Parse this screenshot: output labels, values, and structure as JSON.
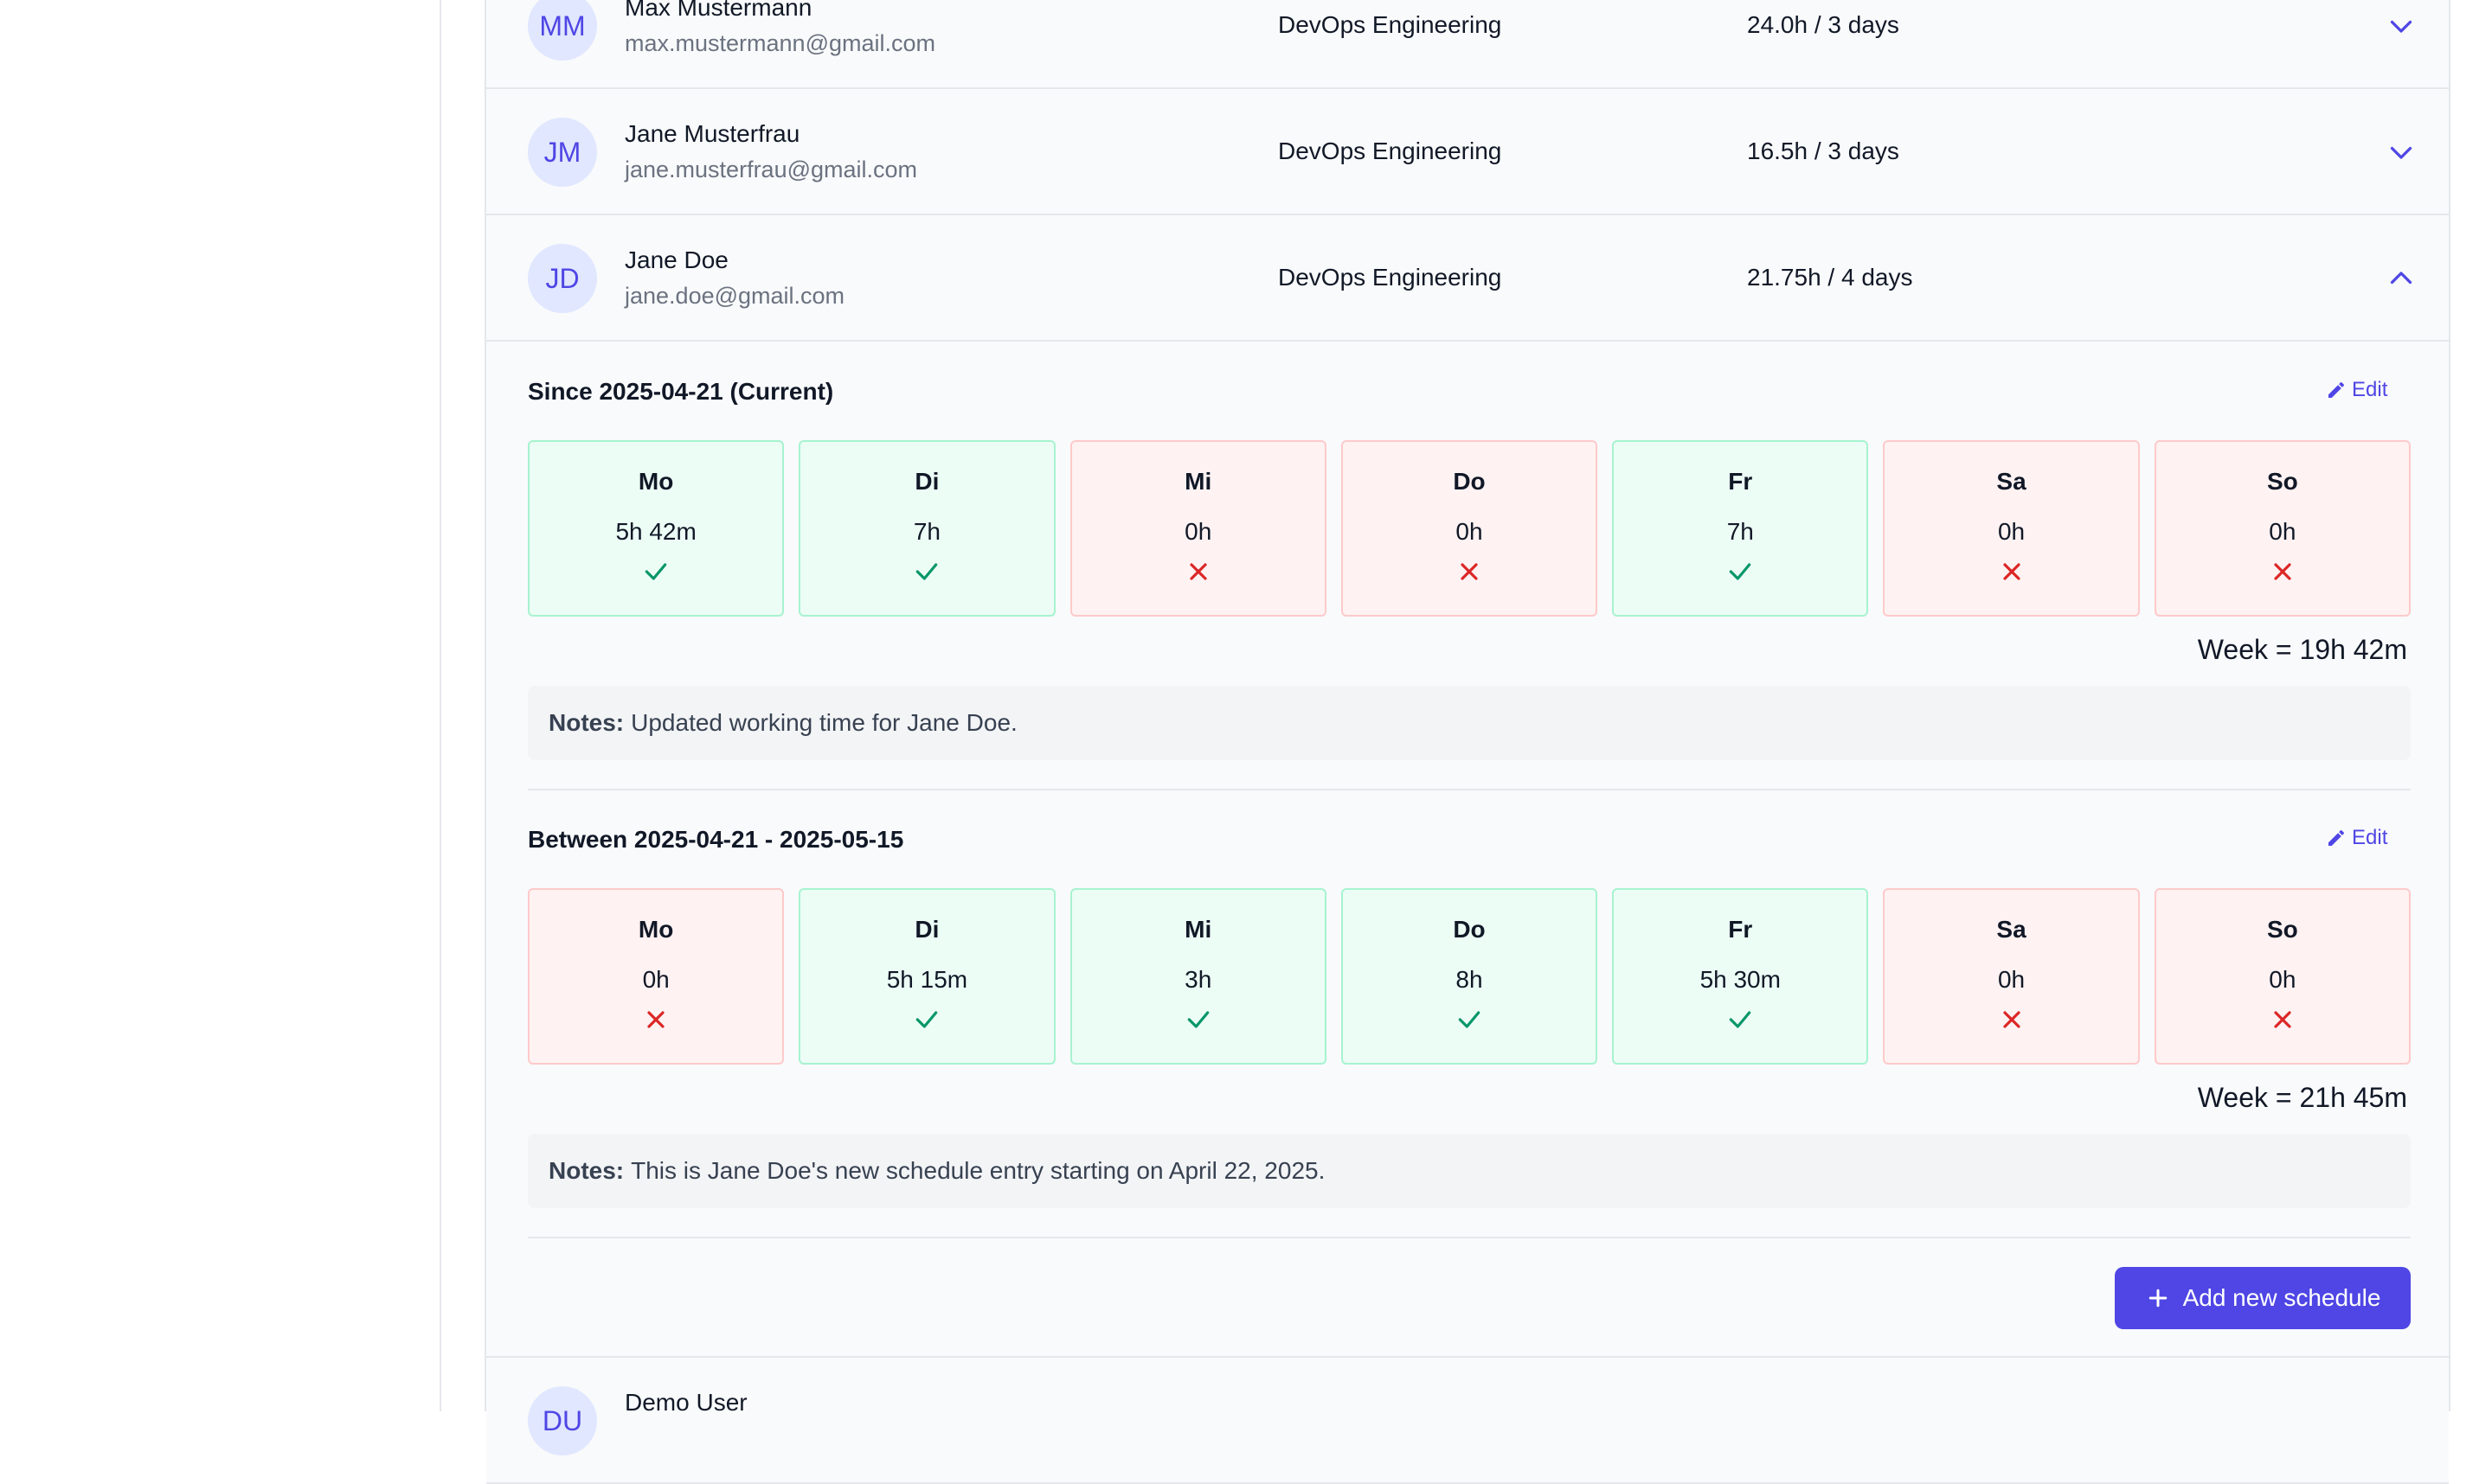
{
  "users": [
    {
      "initials": "MM",
      "name": "Max Mustermann",
      "email": "max.mustermann@gmail.com",
      "department": "DevOps Engineering",
      "hours": "24.0h / 3 days",
      "expanded": false
    },
    {
      "initials": "JM",
      "name": "Jane Musterfrau",
      "email": "jane.musterfrau@gmail.com",
      "department": "DevOps Engineering",
      "hours": "16.5h / 3 days",
      "expanded": false
    },
    {
      "initials": "JD",
      "name": "Jane Doe",
      "email": "jane.doe@gmail.com",
      "department": "DevOps Engineering",
      "hours": "21.75h / 4 days",
      "expanded": true
    },
    {
      "initials": "DU",
      "name": "Demo User"
    }
  ],
  "schedules": [
    {
      "title": "Since 2025-04-21 (Current)",
      "edit_label": "Edit",
      "days": [
        {
          "name": "Mo",
          "hours": "5h 42m",
          "active": true
        },
        {
          "name": "Di",
          "hours": "7h",
          "active": true
        },
        {
          "name": "Mi",
          "hours": "0h",
          "active": false
        },
        {
          "name": "Do",
          "hours": "0h",
          "active": false
        },
        {
          "name": "Fr",
          "hours": "7h",
          "active": true
        },
        {
          "name": "Sa",
          "hours": "0h",
          "active": false
        },
        {
          "name": "So",
          "hours": "0h",
          "active": false
        }
      ],
      "week_total": "Week = 19h 42m",
      "notes_label": "Notes:",
      "notes": "Updated working time for Jane Doe."
    },
    {
      "title": "Between 2025-04-21 - 2025-05-15",
      "edit_label": "Edit",
      "days": [
        {
          "name": "Mo",
          "hours": "0h",
          "active": false
        },
        {
          "name": "Di",
          "hours": "5h 15m",
          "active": true
        },
        {
          "name": "Mi",
          "hours": "3h",
          "active": true
        },
        {
          "name": "Do",
          "hours": "8h",
          "active": true
        },
        {
          "name": "Fr",
          "hours": "5h 30m",
          "active": true
        },
        {
          "name": "Sa",
          "hours": "0h",
          "active": false
        },
        {
          "name": "So",
          "hours": "0h",
          "active": false
        }
      ],
      "week_total": "Week = 21h 45m",
      "notes_label": "Notes:",
      "notes": "This is Jane Doe's new schedule entry starting on April 22, 2025."
    }
  ],
  "add_button_label": "Add new schedule",
  "colors": {
    "accent": "#4f46e5",
    "active_bg": "#ecfdf5",
    "inactive_bg": "#fef2f2",
    "check": "#059669",
    "cross": "#dc2626"
  }
}
